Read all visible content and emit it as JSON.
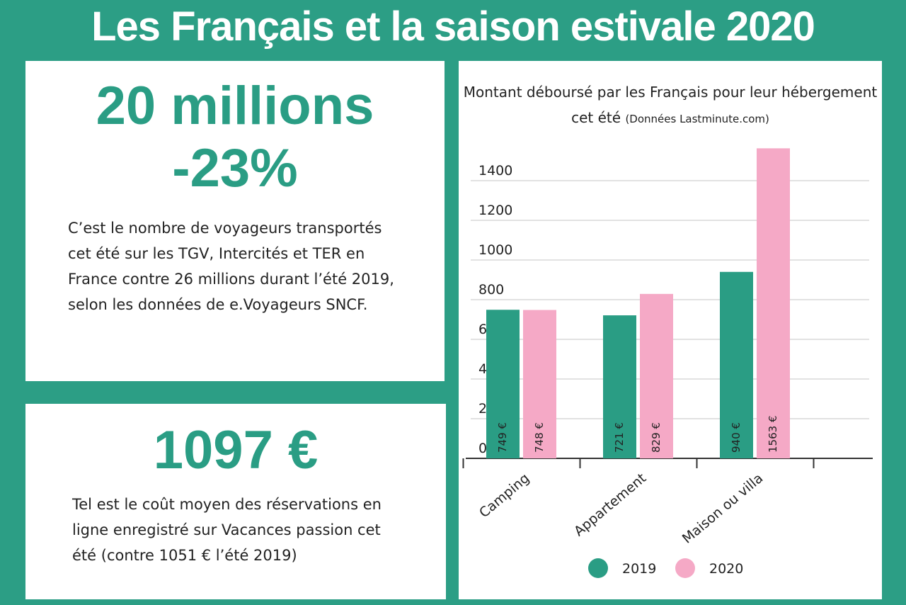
{
  "title": "Les Français et la saison estivale 2020",
  "stats": [
    {
      "figures": [
        "20 millions",
        "-23%"
      ],
      "text": "C’est le nombre de voyageurs transportés cet été sur les TGV, Intercités et TER en France contre 26 millions durant l’été 2019, selon les données de e.Voyageurs SNCF."
    },
    {
      "figures": [
        "1097 €"
      ],
      "text": "Tel est le coût moyen des réservations en ligne enregistré sur Vacances passion cet été (contre 1051 € l’été 2019)"
    }
  ],
  "chart_data": {
    "type": "bar",
    "title": "Montant déboursé par les Français pour leur hébergement cet été",
    "subtitle": "(Données Lastminute.com)",
    "categories": [
      "Camping",
      "Appartement",
      "Maison ou villa"
    ],
    "series": [
      {
        "name": "2019",
        "color": "#2a9d84",
        "values": [
          749,
          721,
          940
        ],
        "value_labels": [
          "749 €",
          "721 €",
          "940 €"
        ]
      },
      {
        "name": "2020",
        "color": "#f5a9c6",
        "values": [
          748,
          829,
          1563
        ],
        "value_labels": [
          "748 €",
          "829 €",
          "1563 €"
        ]
      }
    ],
    "ylim": [
      0,
      1600
    ],
    "yticks": [
      0,
      200,
      400,
      600,
      800,
      1000,
      1200,
      1400
    ],
    "grid": true
  }
}
